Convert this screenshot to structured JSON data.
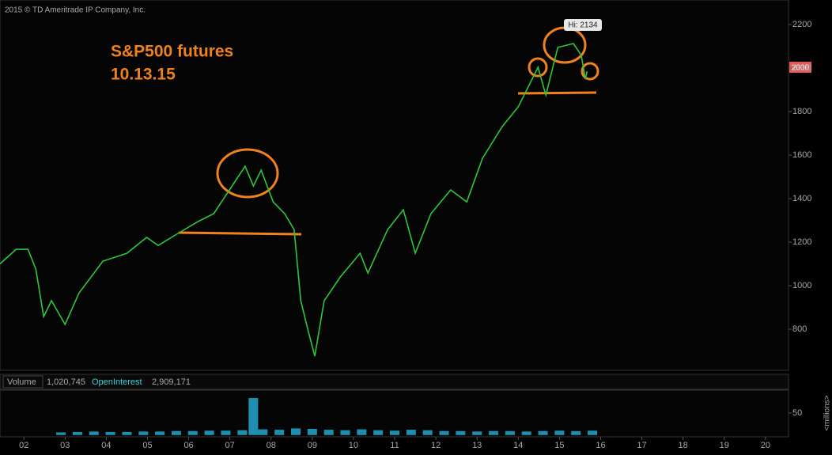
{
  "chart_data": [
    {
      "type": "line",
      "copyright": "2015 © TD Ameritrade IP Company, Inc.",
      "annotation": "S&P500 futures",
      "annotation_date": "10.13.15",
      "high_label": "Hi: 2134",
      "last_price_label": "2000",
      "color": "#2ec63a",
      "x": [
        2001.42,
        2001.81,
        2002.1,
        2002.29,
        2002.48,
        2002.67,
        2003.0,
        2003.34,
        2003.92,
        2004.5,
        2004.98,
        2005.26,
        2005.74,
        2006.22,
        2006.61,
        2006.99,
        2007.37,
        2007.57,
        2007.76,
        2008.05,
        2008.33,
        2008.56,
        2008.72,
        2008.91,
        2009.06,
        2009.29,
        2009.68,
        2010.16,
        2010.35,
        2010.83,
        2011.21,
        2011.5,
        2011.88,
        2012.36,
        2012.75,
        2013.13,
        2013.61,
        2014.0,
        2014.48,
        2014.67,
        2014.96,
        2015.34,
        2015.53,
        2015.63,
        2015.67
      ],
      "values": [
        1100,
        1167,
        1167,
        1076,
        858,
        931,
        822,
        967,
        1113,
        1149,
        1222,
        1185,
        1240,
        1294,
        1331,
        1440,
        1549,
        1458,
        1531,
        1385,
        1331,
        1258,
        931,
        785,
        676,
        931,
        1040,
        1149,
        1058,
        1258,
        1349,
        1149,
        1331,
        1440,
        1385,
        1585,
        1731,
        1822,
        2004,
        1876,
        2095,
        2113,
        2058,
        1949,
        1985
      ],
      "xlim": [
        2001.42,
        2020.56
      ],
      "ylim": [
        611,
        2313
      ],
      "xticks": [
        {
          "value": 2002,
          "label": "02"
        },
        {
          "value": 2003,
          "label": "03"
        },
        {
          "value": 2004,
          "label": "04"
        },
        {
          "value": 2005,
          "label": "05"
        },
        {
          "value": 2006,
          "label": "06"
        },
        {
          "value": 2007,
          "label": "07"
        },
        {
          "value": 2008,
          "label": "08"
        },
        {
          "value": 2009,
          "label": "09"
        },
        {
          "value": 2010,
          "label": "10"
        },
        {
          "value": 2011,
          "label": "11"
        },
        {
          "value": 2012,
          "label": "12"
        },
        {
          "value": 2013,
          "label": "13"
        },
        {
          "value": 2014,
          "label": "14"
        },
        {
          "value": 2015,
          "label": "15"
        },
        {
          "value": 2016,
          "label": "16"
        },
        {
          "value": 2017,
          "label": "17"
        },
        {
          "value": 2018,
          "label": "18"
        },
        {
          "value": 2019,
          "label": "19"
        },
        {
          "value": 2020,
          "label": "20"
        }
      ],
      "yticks": [
        800,
        1000,
        1200,
        1400,
        1600,
        1800,
        2000,
        2200
      ]
    },
    {
      "type": "bar",
      "label": "Volume",
      "volume": "1,020,745",
      "oi_label": "OpenInterest",
      "open_interest": "2,909,171",
      "unit": "<millions>",
      "color": "#1e8fb0",
      "x": [
        2002.9,
        2003.3,
        2003.7,
        2004.1,
        2004.5,
        2004.9,
        2005.3,
        2005.7,
        2006.1,
        2006.5,
        2006.9,
        2007.3,
        2007.57,
        2007.8,
        2008.2,
        2008.6,
        2009.0,
        2009.4,
        2009.8,
        2010.2,
        2010.6,
        2011.0,
        2011.4,
        2011.8,
        2012.2,
        2012.6,
        2013.0,
        2013.4,
        2013.8,
        2014.2,
        2014.6,
        2015.0,
        2015.4,
        2015.8
      ],
      "values": [
        6,
        7,
        8,
        7,
        7,
        8,
        8,
        9,
        9,
        10,
        10,
        11,
        84,
        13,
        12,
        15,
        14,
        12,
        11,
        13,
        11,
        10,
        12,
        11,
        9,
        9,
        8,
        9,
        9,
        8,
        9,
        10,
        9,
        10
      ],
      "xlim": [
        2001.42,
        2020.56
      ],
      "ylim": [
        -4,
        102
      ],
      "yticks": [
        50
      ]
    }
  ]
}
